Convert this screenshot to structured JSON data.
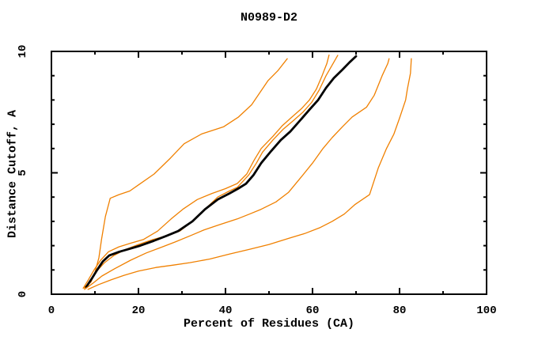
{
  "chart_data": {
    "type": "line",
    "title": "N0989-D2",
    "xlabel": "Percent of Residues (CA)",
    "ylabel": "Distance Cutoff, A",
    "xlim": [
      0,
      100
    ],
    "ylim": [
      0,
      10
    ],
    "x_major_ticks": [
      0,
      20,
      40,
      60,
      80,
      100
    ],
    "x_minor_step": 10,
    "y_major_ticks": [
      0,
      5,
      10
    ],
    "y_minor_step": 1,
    "grid": false,
    "legend": "none",
    "colors": {
      "background": "#FFFFFF",
      "axis": "#000000",
      "orange_series": "#F08000",
      "black_series": "#000000"
    },
    "series": [
      {
        "name": "orange-curve-1",
        "color": "#F08000",
        "width": 1.3,
        "points": [
          [
            7.3,
            0.25
          ],
          [
            9.1,
            0.5
          ],
          [
            10.0,
            0.9
          ],
          [
            10.9,
            1.5
          ],
          [
            11.5,
            2.25
          ],
          [
            12.4,
            3.2
          ],
          [
            13.5,
            3.95
          ],
          [
            15.5,
            4.1
          ],
          [
            18.0,
            4.25
          ],
          [
            20.0,
            4.5
          ],
          [
            23.6,
            4.95
          ],
          [
            27.3,
            5.6
          ],
          [
            30.5,
            6.2
          ],
          [
            34.5,
            6.6
          ],
          [
            39.6,
            6.9
          ],
          [
            43.0,
            7.3
          ],
          [
            46.0,
            7.8
          ],
          [
            49.8,
            8.8
          ],
          [
            52.0,
            9.2
          ],
          [
            54.2,
            9.7
          ]
        ]
      },
      {
        "name": "orange-curve-2",
        "color": "#F08000",
        "width": 1.3,
        "points": [
          [
            7.3,
            0.25
          ],
          [
            8.5,
            0.6
          ],
          [
            9.8,
            1.0
          ],
          [
            11.3,
            1.4
          ],
          [
            13.1,
            1.75
          ],
          [
            15.5,
            1.95
          ],
          [
            18.2,
            2.1
          ],
          [
            21.1,
            2.25
          ],
          [
            24.4,
            2.6
          ],
          [
            27.5,
            3.1
          ],
          [
            30.2,
            3.5
          ],
          [
            33.5,
            3.9
          ],
          [
            36.9,
            4.15
          ],
          [
            40.0,
            4.35
          ],
          [
            42.7,
            4.56
          ],
          [
            44.9,
            4.95
          ],
          [
            46.5,
            5.5
          ],
          [
            48.2,
            6.0
          ],
          [
            50.9,
            6.5
          ],
          [
            53.1,
            6.95
          ],
          [
            55.3,
            7.3
          ],
          [
            57.5,
            7.65
          ],
          [
            59.3,
            8.0
          ],
          [
            60.9,
            8.45
          ],
          [
            62.2,
            9.0
          ],
          [
            63.3,
            9.5
          ],
          [
            63.8,
            9.85
          ]
        ]
      },
      {
        "name": "orange-curve-3",
        "color": "#F08000",
        "width": 1.3,
        "points": [
          [
            7.6,
            0.25
          ],
          [
            8.9,
            0.55
          ],
          [
            10.4,
            0.95
          ],
          [
            12.2,
            1.3
          ],
          [
            14.4,
            1.6
          ],
          [
            17.1,
            1.85
          ],
          [
            20.0,
            2.05
          ],
          [
            23.3,
            2.25
          ],
          [
            26.4,
            2.4
          ],
          [
            29.5,
            2.6
          ],
          [
            32.4,
            3.0
          ],
          [
            35.3,
            3.5
          ],
          [
            38.2,
            4.0
          ],
          [
            40.9,
            4.25
          ],
          [
            42.7,
            4.4
          ],
          [
            45.3,
            4.9
          ],
          [
            47.1,
            5.4
          ],
          [
            48.5,
            5.85
          ],
          [
            50.9,
            6.35
          ],
          [
            53.3,
            6.8
          ],
          [
            55.6,
            7.15
          ],
          [
            57.8,
            7.5
          ],
          [
            59.8,
            7.9
          ],
          [
            61.5,
            8.4
          ],
          [
            63.1,
            9.0
          ],
          [
            64.7,
            9.5
          ],
          [
            65.8,
            9.84
          ]
        ]
      },
      {
        "name": "black-curve",
        "color": "#000000",
        "width": 2.8,
        "points": [
          [
            8.0,
            0.3
          ],
          [
            9.3,
            0.65
          ],
          [
            10.5,
            1.0
          ],
          [
            11.8,
            1.35
          ],
          [
            13.3,
            1.6
          ],
          [
            15.6,
            1.75
          ],
          [
            17.6,
            1.85
          ],
          [
            20.4,
            2.0
          ],
          [
            23.5,
            2.2
          ],
          [
            26.4,
            2.4
          ],
          [
            29.1,
            2.6
          ],
          [
            32.4,
            3.0
          ],
          [
            35.3,
            3.5
          ],
          [
            38.2,
            3.9
          ],
          [
            40.9,
            4.15
          ],
          [
            42.9,
            4.35
          ],
          [
            44.7,
            4.55
          ],
          [
            46.4,
            4.9
          ],
          [
            48.2,
            5.4
          ],
          [
            50.5,
            5.9
          ],
          [
            52.7,
            6.35
          ],
          [
            54.9,
            6.7
          ],
          [
            57.1,
            7.15
          ],
          [
            59.3,
            7.6
          ],
          [
            61.3,
            8.0
          ],
          [
            63.1,
            8.5
          ],
          [
            64.9,
            8.9
          ],
          [
            66.9,
            9.25
          ],
          [
            68.5,
            9.55
          ],
          [
            70.0,
            9.8
          ]
        ]
      },
      {
        "name": "orange-curve-4",
        "color": "#F08000",
        "width": 1.3,
        "points": [
          [
            7.6,
            0.2
          ],
          [
            9.5,
            0.45
          ],
          [
            11.6,
            0.75
          ],
          [
            14.5,
            1.05
          ],
          [
            18.2,
            1.4
          ],
          [
            21.8,
            1.7
          ],
          [
            25.5,
            1.95
          ],
          [
            28.4,
            2.15
          ],
          [
            31.8,
            2.4
          ],
          [
            35.1,
            2.65
          ],
          [
            38.4,
            2.85
          ],
          [
            42.7,
            3.1
          ],
          [
            45.5,
            3.3
          ],
          [
            48.2,
            3.5
          ],
          [
            51.6,
            3.8
          ],
          [
            54.5,
            4.2
          ],
          [
            57.3,
            4.8
          ],
          [
            60.0,
            5.4
          ],
          [
            62.4,
            6.0
          ],
          [
            64.5,
            6.45
          ],
          [
            66.9,
            6.9
          ],
          [
            69.1,
            7.3
          ],
          [
            72.4,
            7.7
          ],
          [
            74.2,
            8.2
          ],
          [
            76.0,
            9.0
          ],
          [
            77.3,
            9.5
          ],
          [
            77.6,
            9.7
          ]
        ]
      },
      {
        "name": "orange-curve-5",
        "color": "#F08000",
        "width": 1.3,
        "points": [
          [
            8.4,
            0.2
          ],
          [
            10.9,
            0.4
          ],
          [
            13.8,
            0.6
          ],
          [
            16.7,
            0.78
          ],
          [
            20.0,
            0.95
          ],
          [
            24.0,
            1.1
          ],
          [
            28.0,
            1.2
          ],
          [
            31.8,
            1.3
          ],
          [
            36.4,
            1.45
          ],
          [
            40.9,
            1.65
          ],
          [
            45.5,
            1.85
          ],
          [
            50.0,
            2.05
          ],
          [
            54.5,
            2.3
          ],
          [
            58.2,
            2.5
          ],
          [
            61.8,
            2.75
          ],
          [
            64.5,
            3.0
          ],
          [
            67.3,
            3.3
          ],
          [
            69.8,
            3.7
          ],
          [
            73.1,
            4.1
          ],
          [
            75.1,
            5.2
          ],
          [
            77.0,
            6.0
          ],
          [
            78.7,
            6.6
          ],
          [
            80.0,
            7.25
          ],
          [
            81.4,
            8.0
          ],
          [
            81.8,
            8.45
          ],
          [
            82.5,
            9.1
          ],
          [
            82.7,
            9.7
          ]
        ]
      }
    ]
  }
}
